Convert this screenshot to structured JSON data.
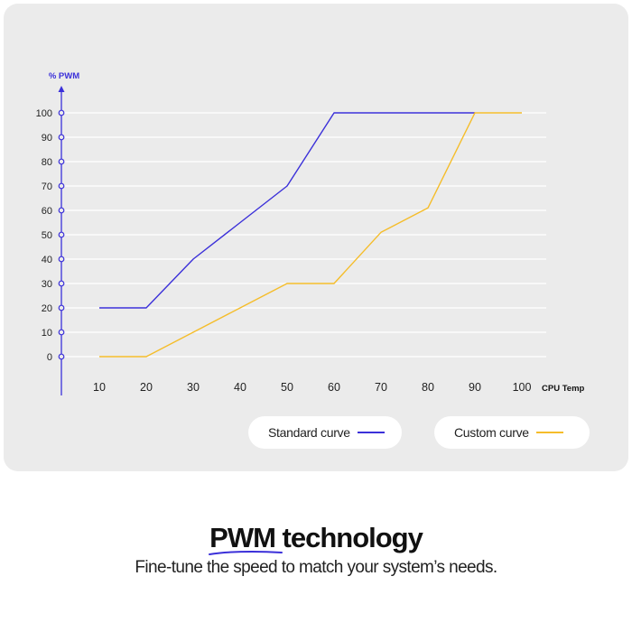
{
  "chart_data": {
    "type": "line",
    "ylabel": "% PWM",
    "xlabel": "CPU Temp",
    "x": [
      10,
      20,
      30,
      40,
      50,
      60,
      70,
      80,
      90,
      100
    ],
    "y_ticks": [
      0,
      10,
      20,
      30,
      40,
      50,
      60,
      70,
      80,
      90,
      100
    ],
    "xlim": [
      10,
      100
    ],
    "ylim": [
      0,
      100
    ],
    "grid": true,
    "legend_position": "bottom-right",
    "series": [
      {
        "name": "Standard curve",
        "color": "#3b30d9",
        "points": [
          [
            10,
            20
          ],
          [
            20,
            20
          ],
          [
            30,
            40
          ],
          [
            40,
            55
          ],
          [
            50,
            70
          ],
          [
            60,
            100
          ],
          [
            90,
            100
          ]
        ]
      },
      {
        "name": "Custom curve",
        "color": "#f5bd2a",
        "points": [
          [
            10,
            0
          ],
          [
            20,
            0
          ],
          [
            30,
            10
          ],
          [
            40,
            20
          ],
          [
            50,
            30
          ],
          [
            60,
            30
          ],
          [
            70,
            51
          ],
          [
            80,
            61
          ],
          [
            90,
            100
          ],
          [
            100,
            100
          ]
        ]
      }
    ]
  },
  "legend": {
    "standard_label": "Standard curve",
    "custom_label": "Custom curve"
  },
  "headline": {
    "highlight": "PWM",
    "rest": " technology"
  },
  "subline": "Fine-tune the speed to match your system’s needs.",
  "colors": {
    "card_background": "#ebebeb",
    "axis": "#3b30d9",
    "grid": "#ffffff",
    "standard": "#3b30d9",
    "custom": "#f5bd2a"
  }
}
